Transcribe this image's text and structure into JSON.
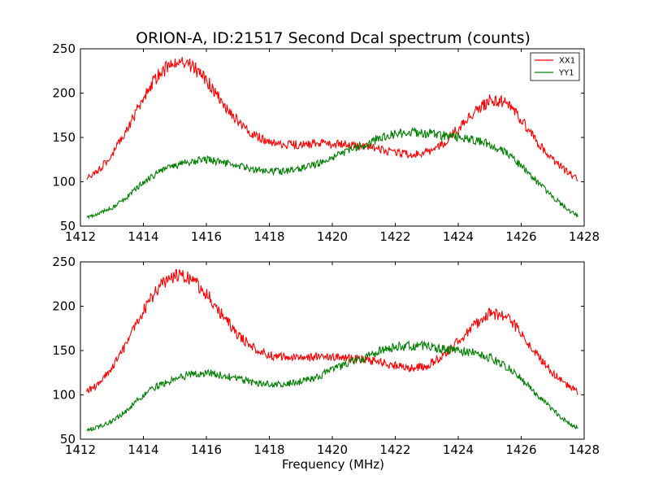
{
  "figure": {
    "title": "ORION-A, ID:21517 Second Dcal spectrum (counts)",
    "xlabel": "Frequency (MHz)"
  },
  "chart_data": [
    {
      "type": "line",
      "panel": "top",
      "title": "ORION-A, ID:21517 Second Dcal spectrum (counts)",
      "xlabel": "",
      "ylabel": "",
      "xlim": [
        1412,
        1428
      ],
      "ylim": [
        50,
        250
      ],
      "xticks": [
        1412,
        1414,
        1416,
        1418,
        1420,
        1422,
        1424,
        1426,
        1428
      ],
      "yticks": [
        50,
        100,
        150,
        200,
        250
      ],
      "grid": false,
      "legend": {
        "position": "top-right",
        "entries": [
          "XX1",
          "YY1"
        ]
      },
      "series": [
        {
          "name": "XX1",
          "color": "#ff0000",
          "x": [
            1412.2,
            1412.5,
            1413.0,
            1413.5,
            1414.0,
            1414.5,
            1415.0,
            1415.5,
            1416.0,
            1416.5,
            1417.0,
            1417.5,
            1418.0,
            1418.5,
            1419.0,
            1419.5,
            1420.0,
            1420.5,
            1421.0,
            1421.5,
            1422.0,
            1422.5,
            1423.0,
            1423.5,
            1424.0,
            1424.5,
            1425.0,
            1425.5,
            1426.0,
            1426.5,
            1427.0,
            1427.5,
            1427.8
          ],
          "values": [
            105,
            110,
            130,
            160,
            195,
            222,
            235,
            232,
            215,
            190,
            168,
            153,
            145,
            142,
            142,
            143,
            143,
            141,
            140,
            137,
            133,
            130,
            133,
            143,
            160,
            178,
            192,
            190,
            170,
            145,
            125,
            110,
            103
          ]
        },
        {
          "name": "YY1",
          "color": "#007f00",
          "x": [
            1412.2,
            1412.5,
            1413.0,
            1413.5,
            1414.0,
            1414.5,
            1415.0,
            1415.5,
            1416.0,
            1416.5,
            1417.0,
            1417.5,
            1418.0,
            1418.5,
            1419.0,
            1419.5,
            1420.0,
            1420.5,
            1421.0,
            1421.5,
            1422.0,
            1422.5,
            1423.0,
            1423.5,
            1424.0,
            1424.5,
            1425.0,
            1425.5,
            1426.0,
            1426.5,
            1427.0,
            1427.5,
            1427.8
          ],
          "values": [
            60,
            63,
            70,
            83,
            100,
            111,
            118,
            123,
            125,
            122,
            118,
            114,
            112,
            112,
            115,
            120,
            128,
            135,
            142,
            149,
            154,
            155,
            155,
            152,
            150,
            147,
            142,
            133,
            118,
            100,
            83,
            68,
            62
          ]
        }
      ]
    },
    {
      "type": "line",
      "panel": "bottom",
      "title": "",
      "xlabel": "Frequency (MHz)",
      "ylabel": "",
      "xlim": [
        1412,
        1428
      ],
      "ylim": [
        50,
        250
      ],
      "xticks": [
        1412,
        1414,
        1416,
        1418,
        1420,
        1422,
        1424,
        1426,
        1428
      ],
      "yticks": [
        50,
        100,
        150,
        200,
        250
      ],
      "grid": false,
      "series": [
        {
          "name": "XX1",
          "color": "#ff0000",
          "x": [
            1412.2,
            1412.5,
            1413.0,
            1413.5,
            1414.0,
            1414.5,
            1415.0,
            1415.5,
            1416.0,
            1416.5,
            1417.0,
            1417.5,
            1418.0,
            1418.5,
            1419.0,
            1419.5,
            1420.0,
            1420.5,
            1421.0,
            1421.5,
            1422.0,
            1422.5,
            1423.0,
            1423.5,
            1424.0,
            1424.5,
            1425.0,
            1425.5,
            1426.0,
            1426.5,
            1427.0,
            1427.5,
            1427.8
          ],
          "values": [
            105,
            110,
            130,
            160,
            195,
            222,
            235,
            232,
            215,
            190,
            168,
            153,
            145,
            142,
            142,
            143,
            143,
            141,
            140,
            137,
            133,
            130,
            133,
            143,
            160,
            178,
            192,
            190,
            170,
            145,
            125,
            110,
            103
          ]
        },
        {
          "name": "YY1",
          "color": "#007f00",
          "x": [
            1412.2,
            1412.5,
            1413.0,
            1413.5,
            1414.0,
            1414.5,
            1415.0,
            1415.5,
            1416.0,
            1416.5,
            1417.0,
            1417.5,
            1418.0,
            1418.5,
            1419.0,
            1419.5,
            1420.0,
            1420.5,
            1421.0,
            1421.5,
            1422.0,
            1422.5,
            1423.0,
            1423.5,
            1424.0,
            1424.5,
            1425.0,
            1425.5,
            1426.0,
            1426.5,
            1427.0,
            1427.5,
            1427.8
          ],
          "values": [
            60,
            63,
            70,
            83,
            100,
            111,
            118,
            123,
            125,
            122,
            118,
            114,
            112,
            112,
            115,
            120,
            128,
            135,
            142,
            149,
            154,
            155,
            155,
            152,
            150,
            147,
            142,
            133,
            118,
            100,
            83,
            68,
            62
          ]
        }
      ]
    }
  ]
}
